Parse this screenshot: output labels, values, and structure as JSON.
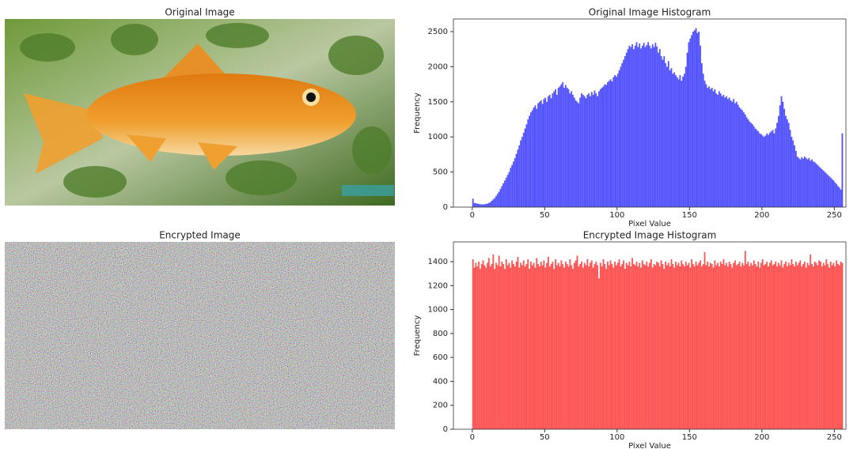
{
  "chart_data": [
    {
      "type": "image",
      "title": "Original Image"
    },
    {
      "type": "histogram",
      "title": "Original Image Histogram",
      "xlabel": "Pixel Value",
      "ylabel": "Frequency",
      "color": "#4b4bff",
      "xlim": [
        -13,
        258
      ],
      "ylim": [
        0,
        2680
      ],
      "xticks": [
        0,
        50,
        100,
        150,
        200,
        250
      ],
      "yticks": [
        0,
        500,
        1000,
        1500,
        2000,
        2500
      ],
      "bins": [
        0,
        1,
        2,
        3,
        4,
        5,
        6,
        7,
        8,
        9,
        10,
        11,
        12,
        13,
        14,
        15,
        16,
        17,
        18,
        19,
        20,
        21,
        22,
        23,
        24,
        25,
        26,
        27,
        28,
        29,
        30,
        31,
        32,
        33,
        34,
        35,
        36,
        37,
        38,
        39,
        40,
        41,
        42,
        43,
        44,
        45,
        46,
        47,
        48,
        49,
        50,
        51,
        52,
        53,
        54,
        55,
        56,
        57,
        58,
        59,
        60,
        61,
        62,
        63,
        64,
        65,
        66,
        67,
        68,
        69,
        70,
        71,
        72,
        73,
        74,
        75,
        76,
        77,
        78,
        79,
        80,
        81,
        82,
        83,
        84,
        85,
        86,
        87,
        88,
        89,
        90,
        91,
        92,
        93,
        94,
        95,
        96,
        97,
        98,
        99,
        100,
        101,
        102,
        103,
        104,
        105,
        106,
        107,
        108,
        109,
        110,
        111,
        112,
        113,
        114,
        115,
        116,
        117,
        118,
        119,
        120,
        121,
        122,
        123,
        124,
        125,
        126,
        127,
        128,
        129,
        130,
        131,
        132,
        133,
        134,
        135,
        136,
        137,
        138,
        139,
        140,
        141,
        142,
        143,
        144,
        145,
        146,
        147,
        148,
        149,
        150,
        151,
        152,
        153,
        154,
        155,
        156,
        157,
        158,
        159,
        160,
        161,
        162,
        163,
        164,
        165,
        166,
        167,
        168,
        169,
        170,
        171,
        172,
        173,
        174,
        175,
        176,
        177,
        178,
        179,
        180,
        181,
        182,
        183,
        184,
        185,
        186,
        187,
        188,
        189,
        190,
        191,
        192,
        193,
        194,
        195,
        196,
        197,
        198,
        199,
        200,
        201,
        202,
        203,
        204,
        205,
        206,
        207,
        208,
        209,
        210,
        211,
        212,
        213,
        214,
        215,
        216,
        217,
        218,
        219,
        220,
        221,
        222,
        223,
        224,
        225,
        226,
        227,
        228,
        229,
        230,
        231,
        232,
        233,
        234,
        235,
        236,
        237,
        238,
        239,
        240,
        241,
        242,
        243,
        244,
        245,
        246,
        247,
        248,
        249,
        250,
        251,
        252,
        253,
        254,
        255,
        256
      ],
      "values": [
        120,
        60,
        55,
        50,
        45,
        40,
        40,
        38,
        40,
        45,
        50,
        60,
        70,
        90,
        110,
        130,
        160,
        190,
        220,
        260,
        300,
        340,
        380,
        420,
        460,
        500,
        560,
        600,
        650,
        700,
        760,
        820,
        880,
        950,
        1000,
        1060,
        1120,
        1180,
        1250,
        1300,
        1350,
        1380,
        1420,
        1450,
        1400,
        1480,
        1500,
        1520,
        1470,
        1540,
        1560,
        1500,
        1580,
        1600,
        1550,
        1620,
        1650,
        1680,
        1600,
        1700,
        1720,
        1750,
        1780,
        1700,
        1740,
        1700,
        1680,
        1620,
        1650,
        1600,
        1560,
        1520,
        1500,
        1480,
        1560,
        1620,
        1600,
        1580,
        1550,
        1600,
        1620,
        1580,
        1640,
        1600,
        1660,
        1620,
        1580,
        1650,
        1680,
        1700,
        1720,
        1750,
        1740,
        1780,
        1800,
        1820,
        1790,
        1850,
        1880,
        1860,
        1900,
        1950,
        2000,
        2050,
        2100,
        2150,
        2200,
        2250,
        2300,
        2280,
        2320,
        2250,
        2300,
        2350,
        2280,
        2330,
        2260,
        2300,
        2340,
        2280,
        2310,
        2350,
        2300,
        2260,
        2320,
        2280,
        2340,
        2290,
        2200,
        2250,
        2150,
        2100,
        2150,
        2050,
        2000,
        2080,
        1950,
        1980,
        1900,
        1920,
        1880,
        1850,
        1820,
        1880,
        1800,
        1860,
        1900,
        2000,
        2200,
        2350,
        2400,
        2450,
        2500,
        2520,
        2550,
        2480,
        2500,
        2300,
        2050,
        1900,
        1800,
        1750,
        1700,
        1720,
        1680,
        1700,
        1650,
        1680,
        1620,
        1600,
        1650,
        1620,
        1580,
        1600,
        1560,
        1580,
        1540,
        1560,
        1520,
        1500,
        1540,
        1480,
        1500,
        1460,
        1420,
        1400,
        1380,
        1350,
        1320,
        1280,
        1250,
        1220,
        1200,
        1180,
        1150,
        1120,
        1100,
        1080,
        1050,
        1040,
        1020,
        1000,
        1020,
        1050,
        1030,
        1060,
        1080,
        1100,
        1050,
        1120,
        1200,
        1300,
        1450,
        1580,
        1500,
        1400,
        1300,
        1250,
        1200,
        1100,
        1000,
        950,
        880,
        800,
        720,
        700,
        680,
        710,
        690,
        720,
        700,
        680,
        700,
        660,
        680,
        650,
        640,
        620,
        600,
        580,
        560,
        540,
        520,
        500,
        480,
        460,
        440,
        420,
        400,
        380,
        350,
        330,
        300,
        280,
        250,
        1050
      ]
    },
    {
      "type": "image",
      "title": "Encrypted Image"
    },
    {
      "type": "histogram",
      "title": "Encrypted Image Histogram",
      "xlabel": "Pixel Value",
      "ylabel": "Frequency",
      "color": "#ff4b4b",
      "xlim": [
        -13,
        258
      ],
      "ylim": [
        0,
        1565
      ],
      "xticks": [
        0,
        50,
        100,
        150,
        200,
        250
      ],
      "yticks": [
        0,
        200,
        400,
        600,
        800,
        1000,
        1200,
        1400
      ],
      "bins": [
        0,
        1,
        2,
        3,
        4,
        5,
        6,
        7,
        8,
        9,
        10,
        11,
        12,
        13,
        14,
        15,
        16,
        17,
        18,
        19,
        20,
        21,
        22,
        23,
        24,
        25,
        26,
        27,
        28,
        29,
        30,
        31,
        32,
        33,
        34,
        35,
        36,
        37,
        38,
        39,
        40,
        41,
        42,
        43,
        44,
        45,
        46,
        47,
        48,
        49,
        50,
        51,
        52,
        53,
        54,
        55,
        56,
        57,
        58,
        59,
        60,
        61,
        62,
        63,
        64,
        65,
        66,
        67,
        68,
        69,
        70,
        71,
        72,
        73,
        74,
        75,
        76,
        77,
        78,
        79,
        80,
        81,
        82,
        83,
        84,
        85,
        86,
        87,
        88,
        89,
        90,
        91,
        92,
        93,
        94,
        95,
        96,
        97,
        98,
        99,
        100,
        101,
        102,
        103,
        104,
        105,
        106,
        107,
        108,
        109,
        110,
        111,
        112,
        113,
        114,
        115,
        116,
        117,
        118,
        119,
        120,
        121,
        122,
        123,
        124,
        125,
        126,
        127,
        128,
        129,
        130,
        131,
        132,
        133,
        134,
        135,
        136,
        137,
        138,
        139,
        140,
        141,
        142,
        143,
        144,
        145,
        146,
        147,
        148,
        149,
        150,
        151,
        152,
        153,
        154,
        155,
        156,
        157,
        158,
        159,
        160,
        161,
        162,
        163,
        164,
        165,
        166,
        167,
        168,
        169,
        170,
        171,
        172,
        173,
        174,
        175,
        176,
        177,
        178,
        179,
        180,
        181,
        182,
        183,
        184,
        185,
        186,
        187,
        188,
        189,
        190,
        191,
        192,
        193,
        194,
        195,
        196,
        197,
        198,
        199,
        200,
        201,
        202,
        203,
        204,
        205,
        206,
        207,
        208,
        209,
        210,
        211,
        212,
        213,
        214,
        215,
        216,
        217,
        218,
        219,
        220,
        221,
        222,
        223,
        224,
        225,
        226,
        227,
        228,
        229,
        230,
        231,
        232,
        233,
        234,
        235,
        236,
        237,
        238,
        239,
        240,
        241,
        242,
        243,
        244,
        245,
        246,
        247,
        248,
        249,
        250,
        251,
        252,
        253,
        254,
        255,
        256
      ],
      "values": [
        1420,
        1350,
        1390,
        1360,
        1400,
        1340,
        1380,
        1410,
        1370,
        1350,
        1390,
        1430,
        1360,
        1380,
        1460,
        1340,
        1390,
        1370,
        1450,
        1360,
        1400,
        1380,
        1340,
        1420,
        1370,
        1390,
        1350,
        1410,
        1380,
        1360,
        1400,
        1440,
        1350,
        1390,
        1370,
        1410,
        1360,
        1380,
        1420,
        1340,
        1400,
        1370,
        1390,
        1350,
        1430,
        1380,
        1360,
        1400,
        1370,
        1410,
        1350,
        1390,
        1440,
        1360,
        1380,
        1400,
        1340,
        1420,
        1370,
        1390,
        1360,
        1410,
        1380,
        1350,
        1400,
        1380,
        1360,
        1420,
        1370,
        1340,
        1390,
        1410,
        1450,
        1360,
        1380,
        1400,
        1350,
        1390,
        1370,
        1420,
        1360,
        1390,
        1410,
        1350,
        1380,
        1400,
        1370,
        1260,
        1390,
        1360,
        1420,
        1380,
        1340,
        1400,
        1370,
        1410,
        1380,
        1350,
        1400,
        1370,
        1390,
        1420,
        1360,
        1380,
        1410,
        1340,
        1390,
        1370,
        1400,
        1360,
        1430,
        1380,
        1370,
        1400,
        1360,
        1390,
        1350,
        1410,
        1380,
        1370,
        1400,
        1360,
        1390,
        1420,
        1350,
        1380,
        1370,
        1400,
        1390,
        1360,
        1410,
        1380,
        1340,
        1400,
        1370,
        1390,
        1360,
        1420,
        1380,
        1350,
        1400,
        1370,
        1390,
        1360,
        1410,
        1380,
        1360,
        1400,
        1370,
        1390,
        1350,
        1420,
        1380,
        1360,
        1400,
        1370,
        1390,
        1410,
        1360,
        1380,
        1480,
        1370,
        1400,
        1360,
        1390,
        1380,
        1350,
        1410,
        1370,
        1390,
        1360,
        1400,
        1380,
        1420,
        1370,
        1390,
        1360,
        1400,
        1380,
        1350,
        1390,
        1410,
        1370,
        1380,
        1400,
        1360,
        1390,
        1370,
        1490,
        1380,
        1400,
        1360,
        1390,
        1370,
        1410,
        1380,
        1360,
        1400,
        1350,
        1390,
        1420,
        1370,
        1380,
        1400,
        1360,
        1390,
        1410,
        1370,
        1380,
        1400,
        1360,
        1390,
        1370,
        1410,
        1350,
        1380,
        1400,
        1360,
        1390,
        1370,
        1420,
        1380,
        1360,
        1400,
        1370,
        1390,
        1410,
        1360,
        1380,
        1400,
        1350,
        1390,
        1370,
        1460,
        1380,
        1360,
        1400,
        1390,
        1370,
        1410,
        1400,
        1360,
        1390,
        1370,
        1420,
        1380,
        1350,
        1400,
        1370,
        1390,
        1360,
        1410,
        1380,
        1370,
        1400,
        1390
      ]
    }
  ]
}
